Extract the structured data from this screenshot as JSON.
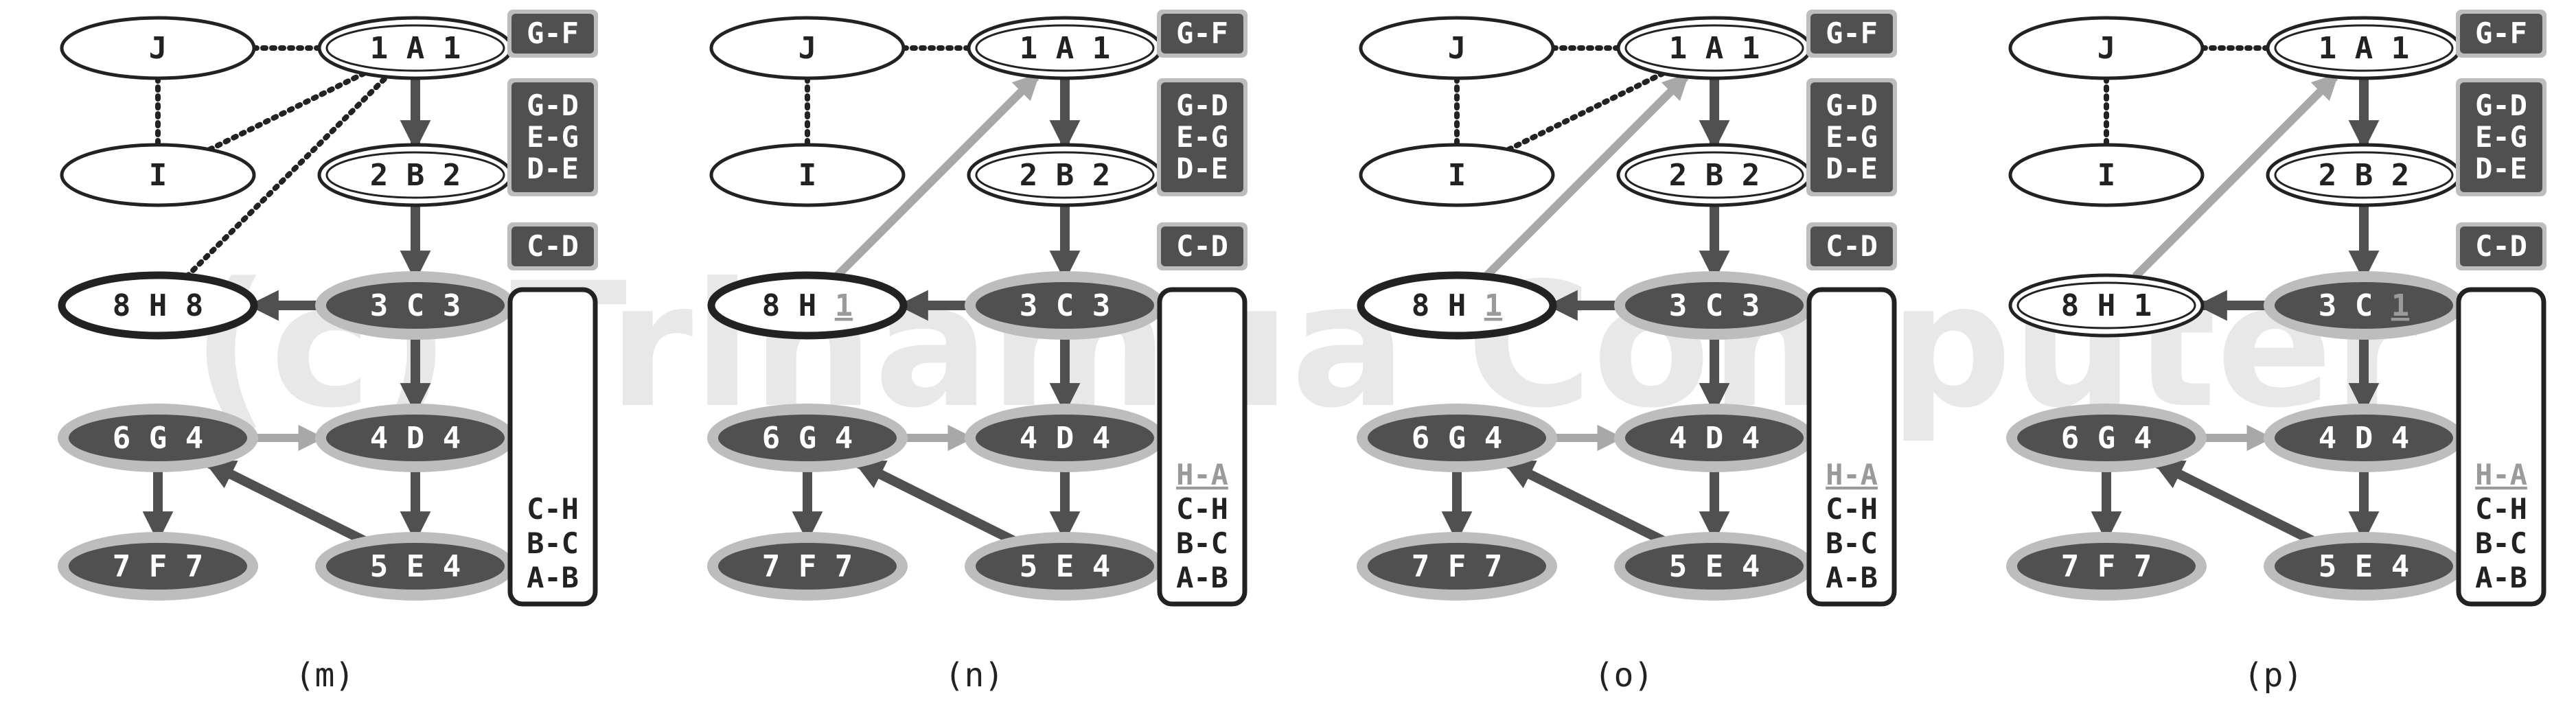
{
  "watermark": "(c) Trinamua Computer",
  "colors": {
    "dark": "#505050",
    "ring": "#bdbdbd",
    "black": "#222222",
    "light_arrow": "#a8a8a8",
    "underline_digit": "#9a9a9a",
    "watermark": "#e8e8e8"
  },
  "panels": [
    {
      "caption": "(m)",
      "nodes": {
        "J": {
          "label": "J",
          "style": "open"
        },
        "I": {
          "label": "I",
          "style": "open"
        },
        "A": {
          "label": "1 A 1",
          "style": "double"
        },
        "B": {
          "label": "2 B 2",
          "style": "double"
        },
        "H": {
          "label": "8 H 8",
          "style": "bold"
        },
        "C": {
          "label": "3 C 3",
          "style": "filled"
        },
        "G": {
          "label": "6 G 4",
          "style": "filled"
        },
        "D": {
          "label": "4 D 4",
          "style": "filled"
        },
        "F": {
          "label": "7 F 7",
          "style": "filled"
        },
        "E": {
          "label": "5 E 4",
          "style": "filled"
        }
      },
      "highlight": null,
      "side_boxes": [
        "G-F",
        "G-D\nE-G\nD-E",
        "C-D"
      ],
      "stack": [
        {
          "text": "C-H"
        },
        {
          "text": "B-C"
        },
        {
          "text": "A-B"
        }
      ],
      "extra_edges": []
    },
    {
      "caption": "(n)",
      "nodes": {
        "J": {
          "label": "J",
          "style": "open"
        },
        "I": {
          "label": "I",
          "style": "open"
        },
        "A": {
          "label": "1 A 1",
          "style": "double"
        },
        "B": {
          "label": "2 B 2",
          "style": "double"
        },
        "H": {
          "label": "8 H ",
          "style": "bold"
        },
        "C": {
          "label": "3 C 3",
          "style": "filled"
        },
        "G": {
          "label": "6 G 4",
          "style": "filled"
        },
        "D": {
          "label": "4 D 4",
          "style": "filled"
        },
        "F": {
          "label": "7 F 7",
          "style": "filled"
        },
        "E": {
          "label": "5 E 4",
          "style": "filled"
        }
      },
      "highlight": "1",
      "side_boxes": [
        "G-F",
        "G-D\nE-G\nD-E",
        "C-D"
      ],
      "stack": [
        {
          "text": "H-A",
          "hl": true
        },
        {
          "text": "C-H"
        },
        {
          "text": "B-C"
        },
        {
          "text": "A-B"
        }
      ],
      "extra_edges": [
        "HA"
      ]
    },
    {
      "caption": "(o)",
      "nodes": {
        "J": {
          "label": "J",
          "style": "open"
        },
        "I": {
          "label": "I",
          "style": "open"
        },
        "A": {
          "label": "1 A 1",
          "style": "double"
        },
        "B": {
          "label": "2 B 2",
          "style": "double"
        },
        "H": {
          "label": "8 H ",
          "style": "bold"
        },
        "C": {
          "label": "3 C 3",
          "style": "filled"
        },
        "G": {
          "label": "6 G 4",
          "style": "filled"
        },
        "D": {
          "label": "4 D 4",
          "style": "filled"
        },
        "F": {
          "label": "7 F 7",
          "style": "filled"
        },
        "E": {
          "label": "5 E 4",
          "style": "filled"
        }
      },
      "highlight": "1",
      "side_boxes": [
        "G-F",
        "G-D\nE-G\nD-E",
        "C-D"
      ],
      "stack": [
        {
          "text": "H-A",
          "hl": true
        },
        {
          "text": "C-H"
        },
        {
          "text": "B-C"
        },
        {
          "text": "A-B"
        }
      ],
      "extra_edges": [
        "HA"
      ]
    },
    {
      "caption": "(p)",
      "nodes": {
        "J": {
          "label": "J",
          "style": "open"
        },
        "I": {
          "label": "I",
          "style": "open"
        },
        "A": {
          "label": "1 A 1",
          "style": "double"
        },
        "B": {
          "label": "2 B 2",
          "style": "double"
        },
        "H": {
          "label": "8 H 1",
          "style": "double"
        },
        "C": {
          "label": "3 C ",
          "style": "filled"
        },
        "G": {
          "label": "6 G 4",
          "style": "filled"
        },
        "D": {
          "label": "4 D 4",
          "style": "filled"
        },
        "F": {
          "label": "7 F 7",
          "style": "filled"
        },
        "E": {
          "label": "5 E 4",
          "style": "filled"
        }
      },
      "highlight": "1",
      "side_boxes": [
        "G-F",
        "G-D\nE-G\nD-E",
        "C-D"
      ],
      "stack": [
        {
          "text": "H-A",
          "hl": true
        },
        {
          "text": "C-H"
        },
        {
          "text": "B-C"
        },
        {
          "text": "A-B"
        }
      ],
      "extra_edges": [
        "HA"
      ]
    }
  ]
}
